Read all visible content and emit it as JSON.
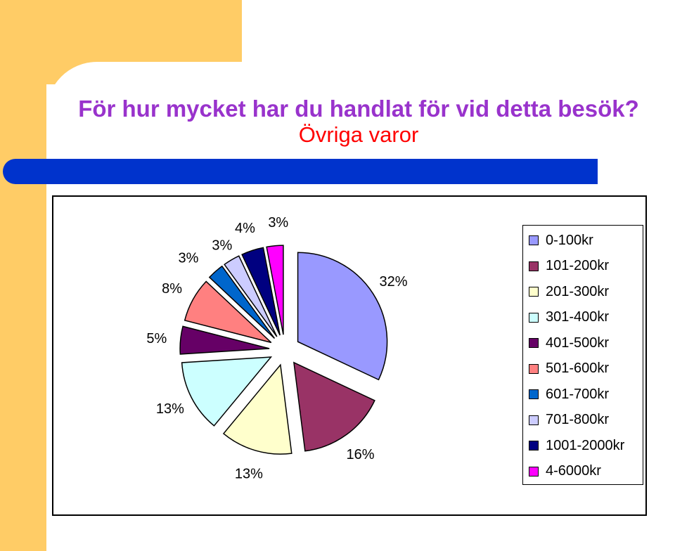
{
  "slide": {
    "title": "För hur mycket har du handlat för vid detta besök?",
    "subtitle": "Övriga varor"
  },
  "chart_data": {
    "type": "pie",
    "style": "exploded",
    "legend_position": "right",
    "categories": [
      "0-100kr",
      "101-200kr",
      "201-300kr",
      "301-400kr",
      "401-500kr",
      "501-600kr",
      "601-700kr",
      "701-800kr",
      "1001-2000kr",
      "4-6000kr"
    ],
    "values": [
      32,
      16,
      13,
      13,
      5,
      8,
      3,
      3,
      4,
      3
    ],
    "labels": [
      "32%",
      "16%",
      "13%",
      "13%",
      "5%",
      "8%",
      "3%",
      "3%",
      "4%",
      "3%"
    ],
    "colors": [
      "#9999ff",
      "#993366",
      "#ffffcc",
      "#ccffff",
      "#660066",
      "#ff8080",
      "#0066cc",
      "#ccccff",
      "#000080",
      "#ff00ff"
    ]
  }
}
